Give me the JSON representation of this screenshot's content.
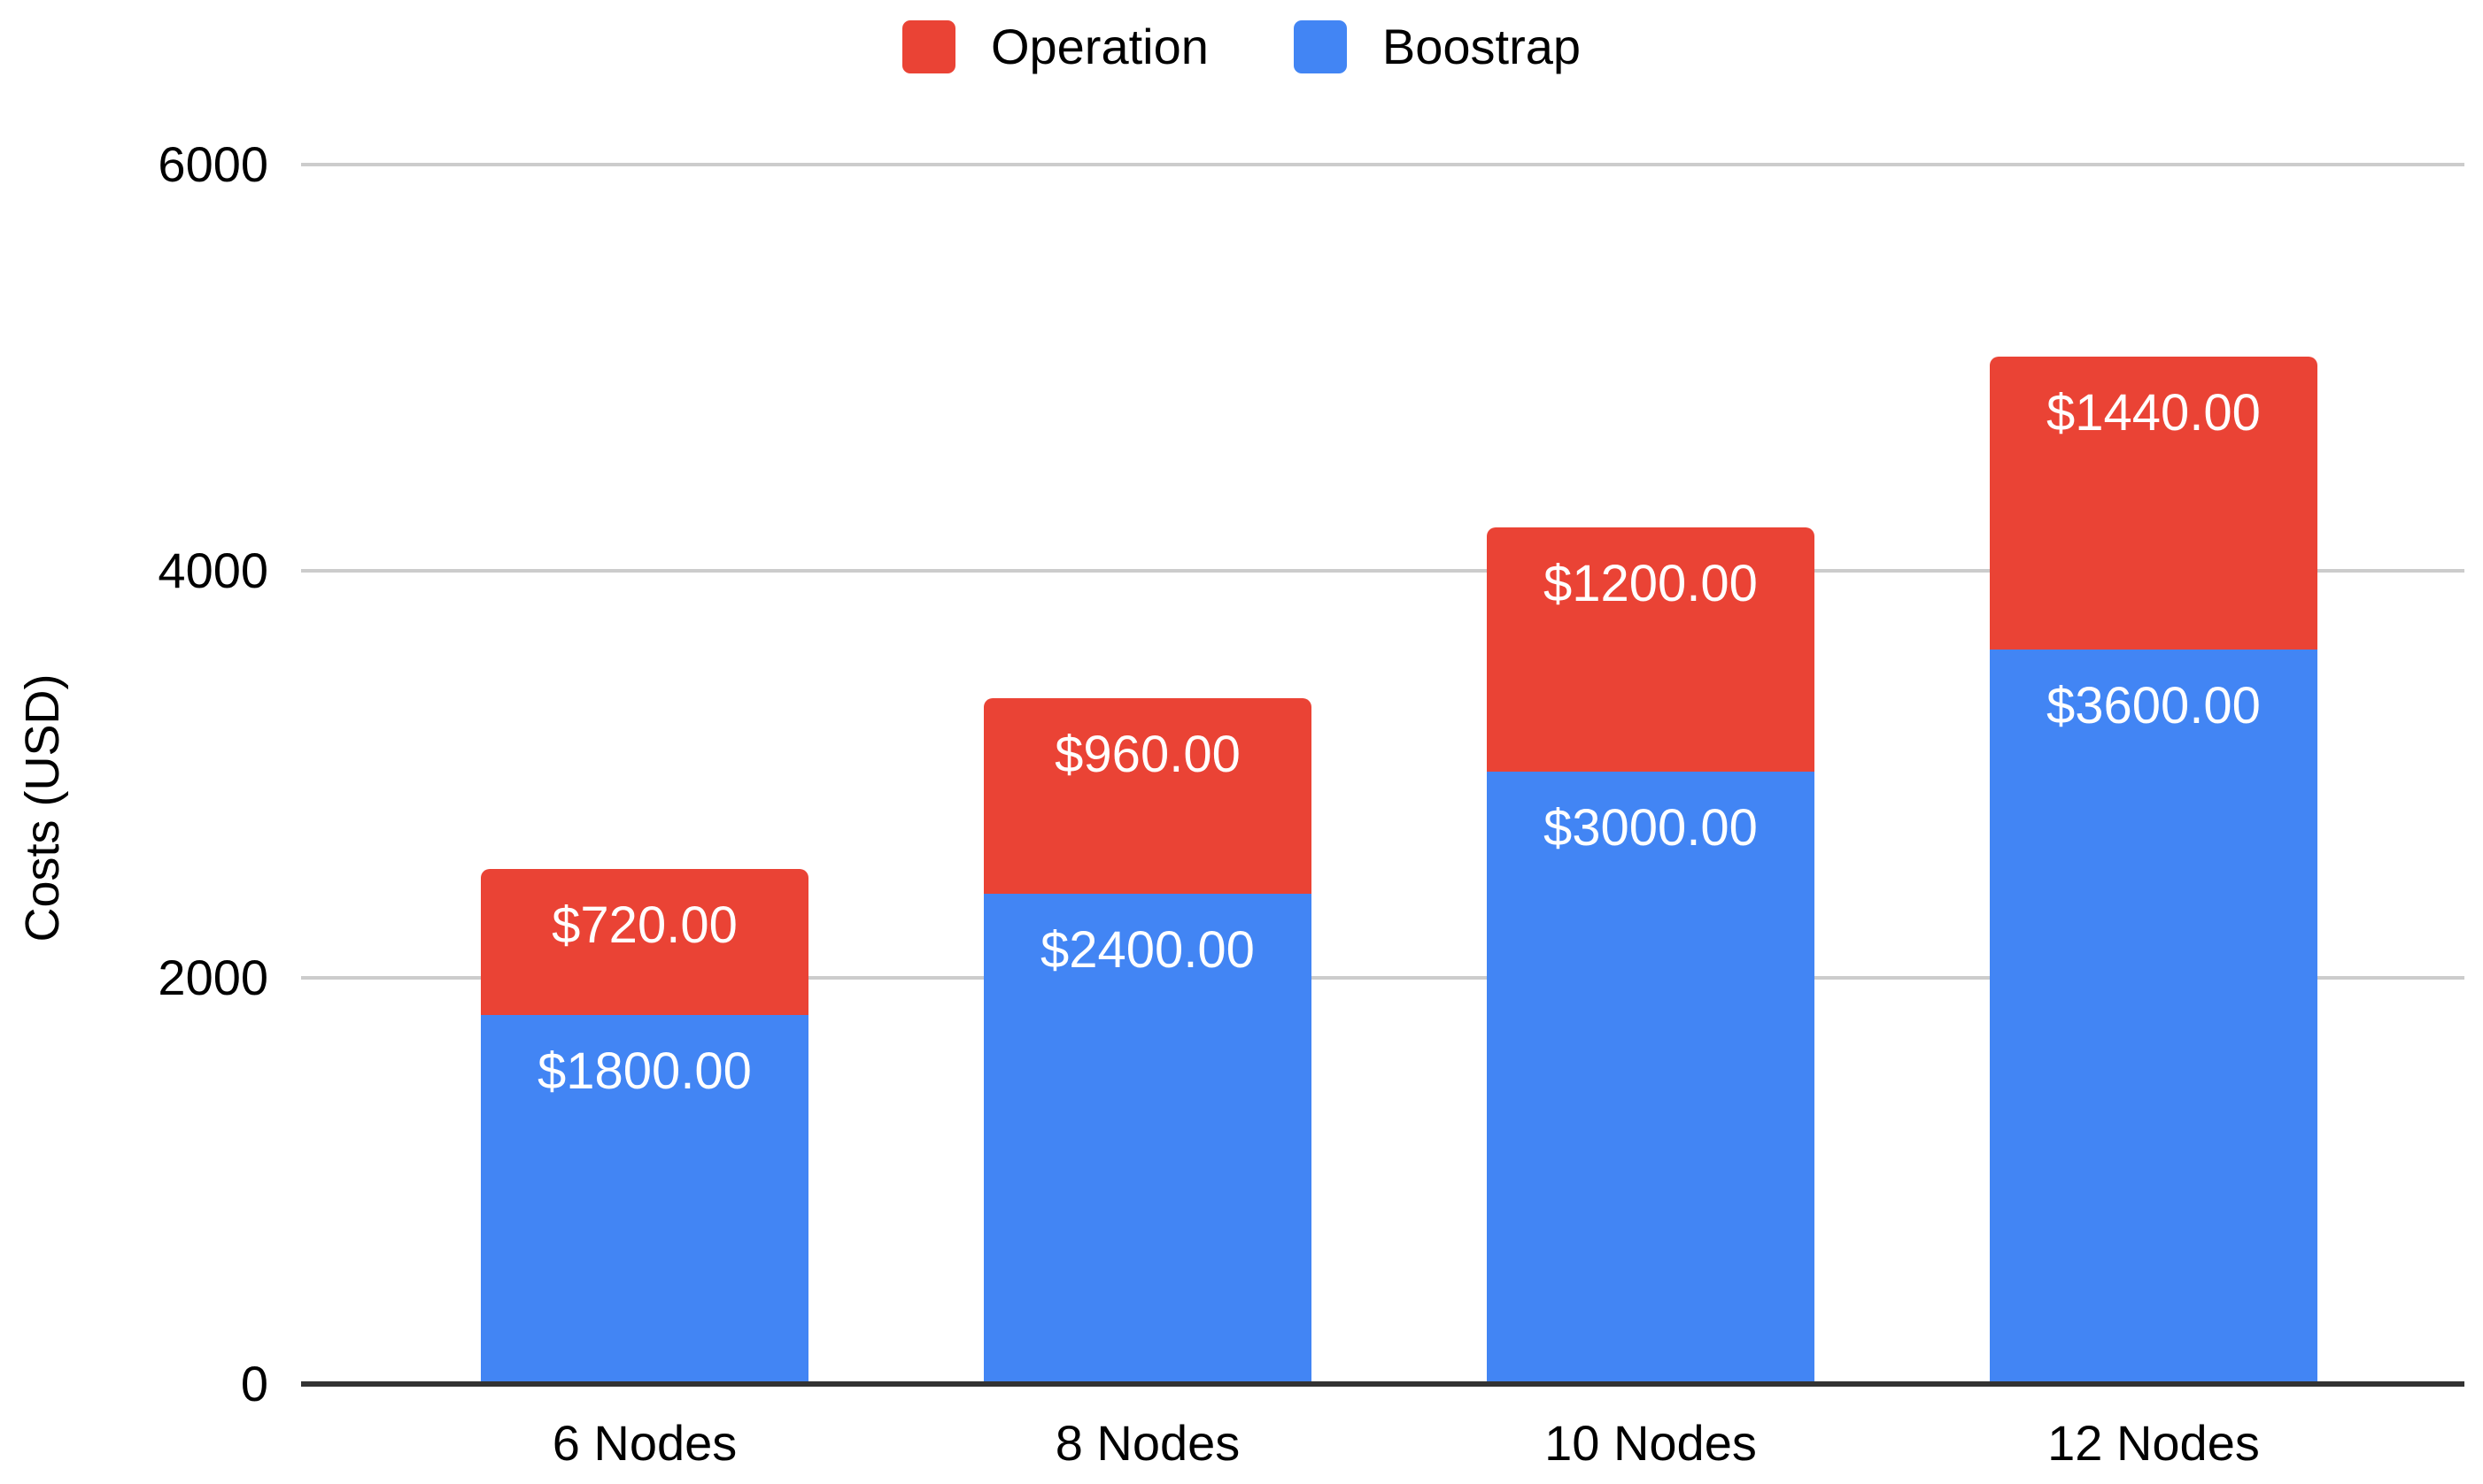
{
  "chart_data": {
    "type": "bar",
    "stacked": true,
    "categories": [
      "6 Nodes",
      "8 Nodes",
      "10 Nodes",
      "12 Nodes"
    ],
    "series": [
      {
        "name": "Boostrap",
        "color": "#4285F4",
        "values": [
          1800,
          2400,
          3000,
          3600
        ],
        "data_labels": [
          "$1800.00",
          "$2400.00",
          "$3000.00",
          "$3600.00"
        ]
      },
      {
        "name": "Operation",
        "color": "#EA4335",
        "values": [
          720,
          960,
          1200,
          1440
        ],
        "data_labels": [
          "$720.00",
          "$960.00",
          "$1200.00",
          "$1440.00"
        ]
      }
    ],
    "totals": [
      2520,
      3360,
      4200,
      5040
    ],
    "legend": {
      "position": "top",
      "items": [
        {
          "label": "Operation",
          "color": "#EA4335"
        },
        {
          "label": "Boostrap",
          "color": "#4285F4"
        }
      ]
    },
    "title": "",
    "xlabel": "",
    "ylabel": "Costs (USD)",
    "yticks": [
      0,
      2000,
      4000,
      6000
    ],
    "ylim": [
      0,
      6000
    ],
    "grid": true,
    "colors": {
      "gridline": "#cccccc",
      "axis_baseline": "#333333",
      "data_label_text": "#ffffff",
      "axis_text": "#000000",
      "background": "#ffffff"
    }
  }
}
